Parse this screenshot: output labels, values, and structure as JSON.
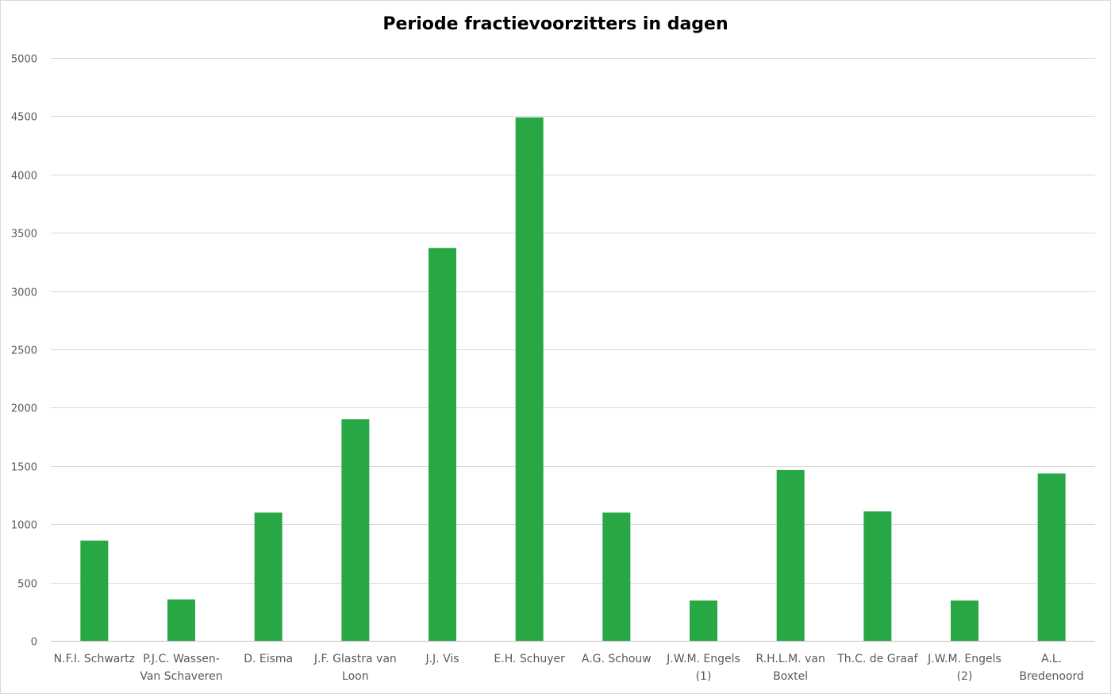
{
  "chart_data": {
    "type": "bar",
    "title": "Periode fractievoorzitters in dagen",
    "xlabel": "",
    "ylabel": "",
    "ylim": [
      0,
      5000
    ],
    "yticks": [
      0,
      500,
      1000,
      1500,
      2000,
      2500,
      3000,
      3500,
      4000,
      4500,
      5000
    ],
    "grid": true,
    "legend": "none",
    "categories": [
      [
        "N.F.I. Schwartz"
      ],
      [
        "P.J.C. Wassen-",
        "Van Schaveren"
      ],
      [
        "D. Eisma"
      ],
      [
        "J.F. Glastra van",
        "Loon"
      ],
      [
        "J.J. Vis"
      ],
      [
        "E.H. Schuyer"
      ],
      [
        "A.G. Schouw"
      ],
      [
        "J.W.M. Engels",
        "(1)"
      ],
      [
        "R.H.L.M. van",
        "Boxtel"
      ],
      [
        "Th.C. de Graaf"
      ],
      [
        "J.W.M. Engels",
        "(2)"
      ],
      [
        "A.L.",
        "Bredenoord"
      ]
    ],
    "values": [
      860,
      355,
      1100,
      1900,
      3370,
      4490,
      1100,
      345,
      1465,
      1110,
      345,
      1435
    ],
    "bar_color": "#28a745",
    "grid_color": "#d9d9d9",
    "axis_color": "#bfbfbf"
  }
}
